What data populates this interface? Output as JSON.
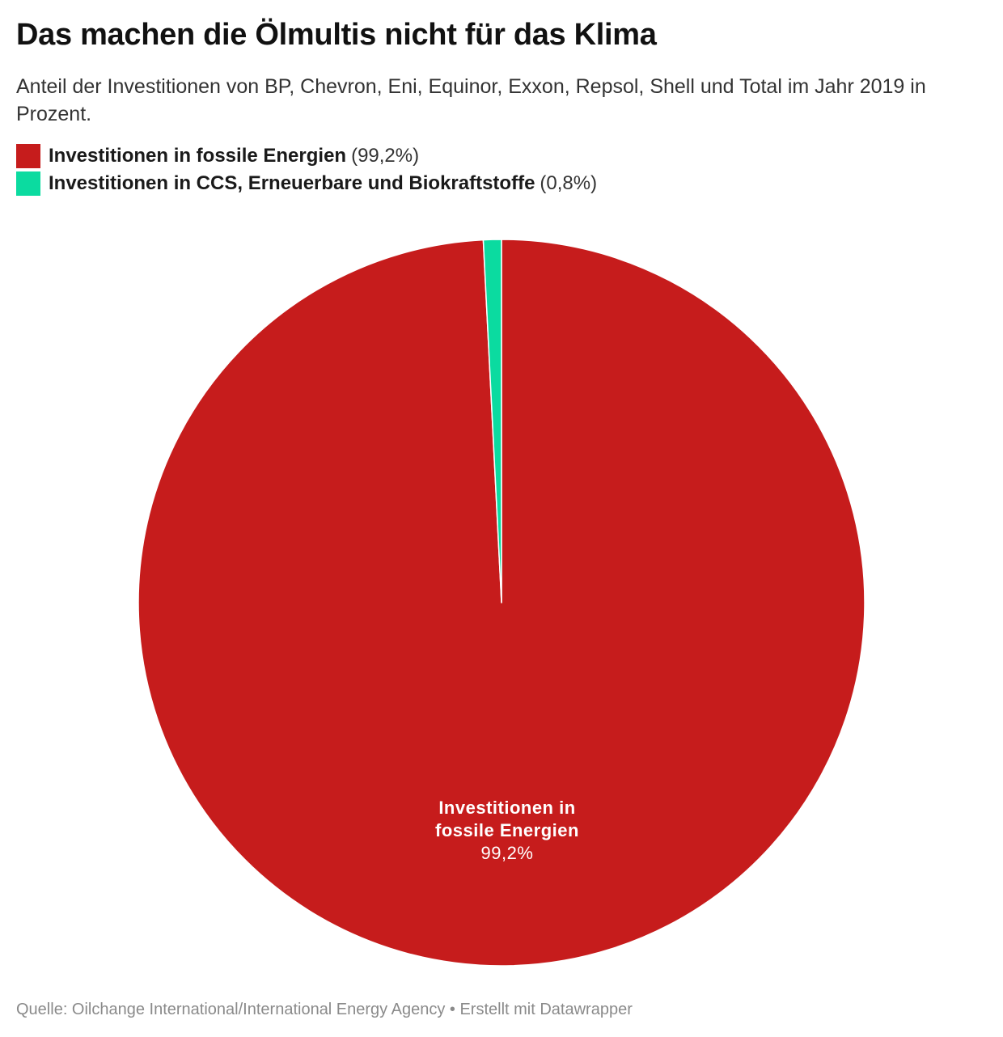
{
  "title": "Das machen die Ölmultis nicht für das Klima",
  "subtitle": "Anteil der Investitionen von BP, Chevron, Eni, Equinor, Exxon, Repsol, Shell und Total im Jahr 2019 in Prozent.",
  "legend": [
    {
      "name": "Investitionen in fossile Energien",
      "pct": "(99,2%)",
      "color": "#c61c1c"
    },
    {
      "name": "Investitionen in CCS, Erneuerbare und Biokraftstoffe",
      "pct": "(0,8%)",
      "color": "#0bdba0"
    }
  ],
  "slice_label": {
    "line1": "Investitionen in",
    "line2": "fossile Energien",
    "value": "99,2%"
  },
  "footer": "Quelle: Oilchange International/International Energy Agency • Erstellt mit Datawrapper",
  "chart_data": {
    "type": "pie",
    "title": "Das machen die Ölmultis nicht für das Klima",
    "subtitle": "Anteil der Investitionen von BP, Chevron, Eni, Equinor, Exxon, Repsol, Shell und Total im Jahr 2019 in Prozent.",
    "categories": [
      "Investitionen in fossile Energien",
      "Investitionen in CCS, Erneuerbare und Biokraftstoffe"
    ],
    "values": [
      99.2,
      0.8
    ],
    "unit": "%",
    "colors": [
      "#c61c1c",
      "#0bdba0"
    ],
    "legend_position": "top-left",
    "source": "Quelle: Oilchange International/International Energy Agency • Erstellt mit Datawrapper"
  }
}
